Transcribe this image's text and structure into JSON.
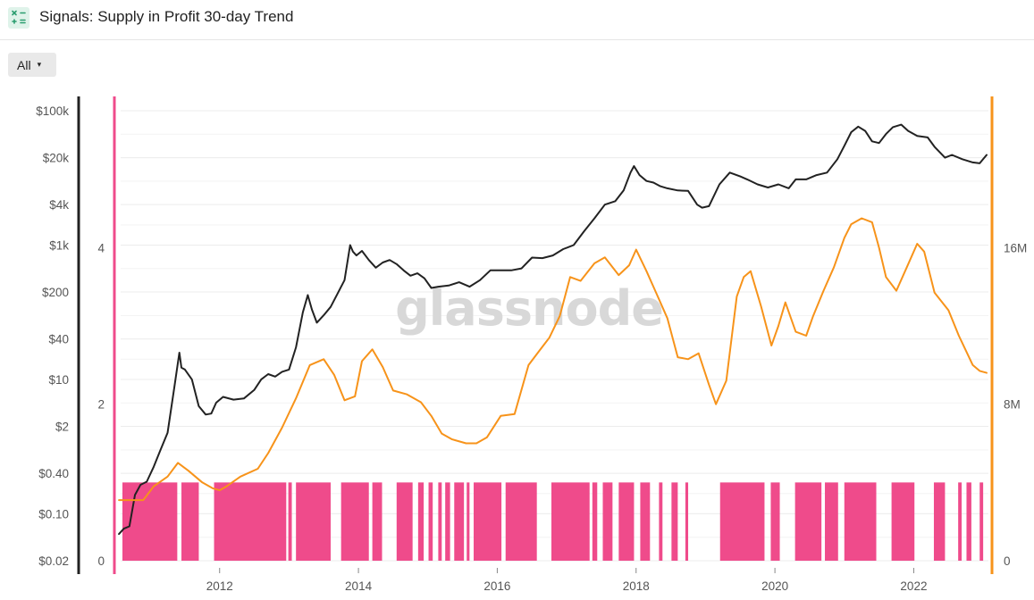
{
  "header": {
    "icon": "calculator-signal-icon",
    "title": "Signals: Supply in Profit 30-day Trend"
  },
  "controls": {
    "range_selected": "All",
    "range_caret": "▾"
  },
  "watermark": "glassnode",
  "colors": {
    "price_line": "#222222",
    "supply_line": "#f7931a",
    "signal_bars": "#ef4b8b",
    "left_axis_bar": "#ef4b8b",
    "right_axis_bar": "#f7931a",
    "price_axis_bar": "#222222",
    "grid": "#ececec"
  },
  "chart_data": {
    "type": "line",
    "x_ticks": [
      "2012",
      "2014",
      "2016",
      "2018",
      "2020",
      "2022"
    ],
    "x_range": [
      "2010-07-17",
      "2023-01-20"
    ],
    "price_axis": {
      "scale": "log",
      "ticks": [
        "$100k",
        "$20k",
        "$4k",
        "$1k",
        "$200",
        "$40",
        "$10",
        "$2",
        "$0.40",
        "$0.10",
        "$0.02"
      ],
      "range": [
        0.02,
        100000
      ]
    },
    "signal_axis": {
      "ticks": [
        "4",
        "2",
        "0"
      ],
      "range": [
        0,
        5.75
      ]
    },
    "supply_axis": {
      "ticks": [
        "16M",
        "8M",
        "0"
      ],
      "range": [
        0,
        23000000
      ]
    },
    "series": [
      {
        "axis": "price",
        "x": [
          2010.55,
          2010.62,
          2010.7,
          2010.78,
          2010.86,
          2010.95,
          2011.05,
          2011.15,
          2011.25,
          2011.35,
          2011.42,
          2011.45,
          2011.5,
          2011.6,
          2011.7,
          2011.8,
          2011.88,
          2011.95,
          2012.05,
          2012.2,
          2012.35,
          2012.5,
          2012.6,
          2012.7,
          2012.8,
          2012.9,
          2013.0,
          2013.1,
          2013.2,
          2013.27,
          2013.33,
          2013.4,
          2013.5,
          2013.6,
          2013.7,
          2013.8,
          2013.88,
          2013.92,
          2013.97,
          2014.05,
          2014.15,
          2014.25,
          2014.35,
          2014.45,
          2014.55,
          2014.65,
          2014.75,
          2014.85,
          2014.95,
          2015.05,
          2015.15,
          2015.3,
          2015.45,
          2015.6,
          2015.75,
          2015.9,
          2016.05,
          2016.2,
          2016.35,
          2016.5,
          2016.65,
          2016.8,
          2016.95,
          2017.1,
          2017.25,
          2017.4,
          2017.55,
          2017.7,
          2017.82,
          2017.92,
          2017.97,
          2018.05,
          2018.15,
          2018.25,
          2018.35,
          2018.45,
          2018.6,
          2018.75,
          2018.88,
          2018.95,
          2019.05,
          2019.2,
          2019.35,
          2019.5,
          2019.6,
          2019.75,
          2019.9,
          2020.05,
          2020.2,
          2020.3,
          2020.45,
          2020.6,
          2020.75,
          2020.9,
          2021.0,
          2021.1,
          2021.2,
          2021.3,
          2021.4,
          2021.5,
          2021.6,
          2021.7,
          2021.82,
          2021.92,
          2022.05,
          2022.2,
          2022.3,
          2022.45,
          2022.55,
          2022.7,
          2022.85,
          2022.95,
          2023.05
        ],
        "values": [
          0.05,
          0.06,
          0.065,
          0.19,
          0.27,
          0.3,
          0.5,
          0.9,
          1.6,
          8,
          25,
          15,
          14,
          10,
          4,
          3,
          3.1,
          4.5,
          5.5,
          5,
          5.2,
          7,
          10,
          12,
          11,
          13,
          14,
          30,
          100,
          180,
          110,
          70,
          90,
          120,
          190,
          300,
          1000,
          800,
          700,
          820,
          600,
          460,
          550,
          600,
          520,
          420,
          350,
          380,
          320,
          230,
          240,
          250,
          280,
          240,
          300,
          420,
          420,
          420,
          450,
          650,
          640,
          700,
          870,
          1000,
          1600,
          2500,
          4000,
          4500,
          6500,
          12000,
          15000,
          11000,
          9000,
          8500,
          7500,
          7000,
          6500,
          6400,
          4000,
          3600,
          3800,
          8000,
          12000,
          10500,
          9500,
          8000,
          7200,
          8000,
          7000,
          9500,
          9500,
          11000,
          12000,
          19000,
          30000,
          48000,
          58000,
          50000,
          35000,
          33000,
          45000,
          57000,
          62000,
          50000,
          42000,
          40000,
          29000,
          20000,
          22000,
          19000,
          17000,
          16500,
          22000
        ],
        "name": ""
      },
      {
        "axis": "supply",
        "x": [
          2010.55,
          2010.9,
          2011.05,
          2011.25,
          2011.4,
          2011.55,
          2011.75,
          2011.9,
          2012.0,
          2012.1,
          2012.3,
          2012.55,
          2012.7,
          2012.9,
          2013.1,
          2013.3,
          2013.5,
          2013.65,
          2013.8,
          2013.95,
          2014.05,
          2014.2,
          2014.35,
          2014.5,
          2014.7,
          2014.9,
          2015.05,
          2015.2,
          2015.35,
          2015.55,
          2015.7,
          2015.85,
          2016.05,
          2016.25,
          2016.45,
          2016.6,
          2016.75,
          2016.9,
          2017.05,
          2017.2,
          2017.4,
          2017.55,
          2017.75,
          2017.9,
          2018.0,
          2018.15,
          2018.3,
          2018.45,
          2018.6,
          2018.75,
          2018.9,
          2019.05,
          2019.15,
          2019.3,
          2019.45,
          2019.55,
          2019.65,
          2019.8,
          2019.95,
          2020.05,
          2020.15,
          2020.3,
          2020.45,
          2020.55,
          2020.7,
          2020.85,
          2021.0,
          2021.1,
          2021.25,
          2021.4,
          2021.5,
          2021.6,
          2021.75,
          2021.9,
          2022.05,
          2022.15,
          2022.3,
          2022.5,
          2022.65,
          2022.85,
          2022.95,
          2023.05
        ],
        "values": [
          3100000,
          3100000,
          3800000,
          4300000,
          5000000,
          4600000,
          4000000,
          3700000,
          3600000,
          3800000,
          4300000,
          4700000,
          5500000,
          6800000,
          8300000,
          10000000,
          10300000,
          9500000,
          8200000,
          8400000,
          10200000,
          10800000,
          9900000,
          8700000,
          8500000,
          8100000,
          7400000,
          6500000,
          6200000,
          6000000,
          6000000,
          6300000,
          7400000,
          7500000,
          10000000,
          10700000,
          11400000,
          12500000,
          14500000,
          14300000,
          15200000,
          15500000,
          14600000,
          15100000,
          15900000,
          14800000,
          13600000,
          12400000,
          10400000,
          10300000,
          10600000,
          9000000,
          8000000,
          9200000,
          13500000,
          14500000,
          14800000,
          13000000,
          11000000,
          12000000,
          13200000,
          11700000,
          11500000,
          12500000,
          13800000,
          15000000,
          16500000,
          17200000,
          17500000,
          17300000,
          16000000,
          14500000,
          13800000,
          15000000,
          16200000,
          15800000,
          13700000,
          12800000,
          11500000,
          10000000,
          9700000,
          9600000
        ],
        "name": ""
      }
    ],
    "signal_bars": {
      "value": 1,
      "axis": "signal",
      "intervals": [
        [
          "2010.60",
          "2011.39"
        ],
        [
          "2011.45",
          "2011.70"
        ],
        [
          "2011.92",
          "2012.96"
        ],
        [
          "2012.99",
          "2013.04"
        ],
        [
          "2013.10",
          "2013.60"
        ],
        [
          "2013.75",
          "2014.15"
        ],
        [
          "2014.20",
          "2014.34"
        ],
        [
          "2014.55",
          "2014.78"
        ],
        [
          "2014.86",
          "2014.94"
        ],
        [
          "2015.01",
          "2015.07"
        ],
        [
          "2015.15",
          "2015.20"
        ],
        [
          "2015.25",
          "2015.32"
        ],
        [
          "2015.38",
          "2015.52"
        ],
        [
          "2015.56",
          "2015.60"
        ],
        [
          "2015.66",
          "2016.06"
        ],
        [
          "2016.12",
          "2016.57"
        ],
        [
          "2016.78",
          "2017.33"
        ],
        [
          "2017.37",
          "2017.44"
        ],
        [
          "2017.52",
          "2017.66"
        ],
        [
          "2017.75",
          "2017.97"
        ],
        [
          "2018.06",
          "2018.20"
        ],
        [
          "2018.33",
          "2018.38"
        ],
        [
          "2018.51",
          "2018.60"
        ],
        [
          "2018.71",
          "2018.75"
        ],
        [
          "2019.21",
          "2019.85"
        ],
        [
          "2019.94",
          "2020.07"
        ],
        [
          "2020.29",
          "2020.67"
        ],
        [
          "2020.72",
          "2020.91"
        ],
        [
          "2021.00",
          "2021.46"
        ],
        [
          "2021.68",
          "2022.01"
        ],
        [
          "2022.29",
          "2022.45"
        ],
        [
          "2022.64",
          "2022.69"
        ],
        [
          "2022.76",
          "2022.83"
        ],
        [
          "2022.95",
          "2023.00"
        ]
      ]
    }
  }
}
